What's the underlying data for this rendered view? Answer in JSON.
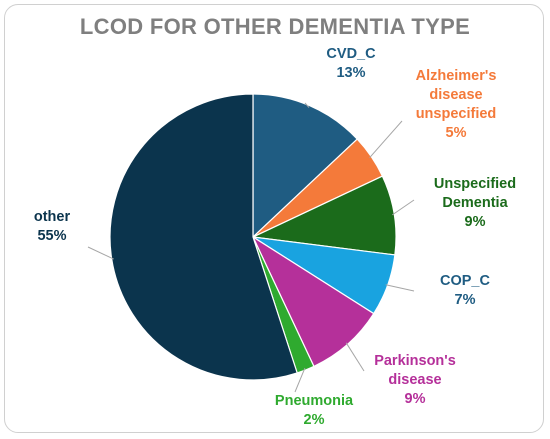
{
  "chart_data": {
    "type": "pie",
    "title": "LCOD FOR OTHER DEMENTIA TYPE",
    "slices": [
      {
        "label": "CVD_C",
        "value": 13,
        "pct_label": "13%",
        "color": "#1f5c82",
        "label_color": "#1f5c82",
        "label_lines": [
          "CVD_C",
          "13%"
        ]
      },
      {
        "label": "Alzheimer's disease unspecified",
        "value": 5,
        "pct_label": "5%",
        "color": "#f47a3a",
        "label_color": "#f47a3a",
        "label_lines": [
          "Alzheimer's",
          "disease",
          "unspecified",
          "5%"
        ]
      },
      {
        "label": "Unspecified Dementia",
        "value": 9,
        "pct_label": "9%",
        "color": "#1b6b1b",
        "label_color": "#1b6b1b",
        "label_lines": [
          "Unspecified",
          "Dementia",
          "9%"
        ]
      },
      {
        "label": "COP_C",
        "value": 7,
        "pct_label": "7%",
        "color": "#19a3e0",
        "label_color": "#1f5c82",
        "label_lines": [
          "COP_C",
          "7%"
        ]
      },
      {
        "label": "Parkinson's disease",
        "value": 9,
        "pct_label": "9%",
        "color": "#b5309a",
        "label_color": "#b5309a",
        "label_lines": [
          "Parkinson's",
          "disease",
          "9%"
        ]
      },
      {
        "label": "Pneumonia",
        "value": 2,
        "pct_label": "2%",
        "color": "#2faa2f",
        "label_color": "#2faa2f",
        "label_lines": [
          "Pneumonia",
          "2%"
        ]
      },
      {
        "label": "other",
        "value": 55,
        "pct_label": "55%",
        "color": "#0b344d",
        "label_color": "#0b344d",
        "label_lines": [
          "other",
          "55%"
        ]
      }
    ],
    "legend": "none"
  }
}
